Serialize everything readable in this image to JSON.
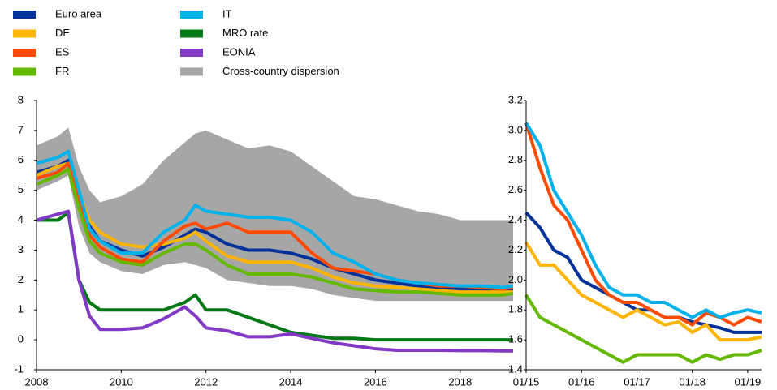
{
  "chart_data": [
    {
      "type": "line",
      "x": [
        2008,
        2008.5,
        2008.75,
        2009,
        2009.25,
        2009.5,
        2010,
        2010.5,
        2011,
        2011.5,
        2011.75,
        2012,
        2012.5,
        2013,
        2013.5,
        2014,
        2014.5,
        2015,
        2015.5,
        2016,
        2016.5,
        2017,
        2017.5,
        2018,
        2018.5,
        2019,
        2019.25
      ],
      "band": {
        "name": "Cross-country dispersion",
        "color": "#a6a6a6",
        "lower": [
          5.0,
          5.3,
          5.5,
          3.8,
          2.9,
          2.6,
          2.3,
          2.2,
          2.5,
          2.6,
          2.5,
          2.4,
          2.0,
          1.9,
          1.8,
          1.8,
          1.7,
          1.5,
          1.4,
          1.3,
          1.3,
          1.3,
          1.3,
          1.3,
          1.3,
          1.3,
          1.3
        ],
        "upper": [
          6.5,
          6.8,
          7.1,
          5.8,
          5.0,
          4.6,
          4.8,
          5.2,
          6.0,
          6.6,
          6.9,
          7.0,
          6.7,
          6.4,
          6.5,
          6.3,
          5.8,
          5.3,
          4.8,
          4.7,
          4.5,
          4.3,
          4.2,
          4.0,
          4.0,
          4.0,
          4.0
        ]
      },
      "series": [
        {
          "name": "Euro area",
          "color": "#003299",
          "values": [
            5.6,
            5.8,
            6.0,
            4.8,
            3.8,
            3.3,
            3.0,
            2.8,
            3.1,
            3.5,
            3.7,
            3.6,
            3.2,
            3.0,
            3.0,
            2.9,
            2.7,
            2.4,
            2.2,
            2.0,
            1.9,
            1.8,
            1.75,
            1.7,
            1.65,
            1.65,
            1.65
          ]
        },
        {
          "name": "DE",
          "color": "#ffb400",
          "values": [
            5.5,
            5.8,
            5.9,
            4.9,
            4.0,
            3.6,
            3.2,
            3.1,
            3.2,
            3.4,
            3.6,
            3.3,
            2.8,
            2.6,
            2.6,
            2.6,
            2.4,
            2.1,
            1.9,
            1.8,
            1.75,
            1.7,
            1.65,
            1.6,
            1.6,
            1.6,
            1.6
          ]
        },
        {
          "name": "ES",
          "color": "#ff4b00",
          "values": [
            5.4,
            5.6,
            5.9,
            4.6,
            3.5,
            3.1,
            2.7,
            2.6,
            3.3,
            3.8,
            3.9,
            3.7,
            3.9,
            3.6,
            3.6,
            3.6,
            2.9,
            2.4,
            2.3,
            2.2,
            2.0,
            1.9,
            1.8,
            1.8,
            1.75,
            1.7,
            1.75
          ]
        },
        {
          "name": "FR",
          "color": "#65b800",
          "values": [
            5.2,
            5.5,
            5.7,
            4.4,
            3.3,
            2.9,
            2.6,
            2.5,
            2.9,
            3.2,
            3.2,
            3.0,
            2.5,
            2.2,
            2.2,
            2.2,
            2.1,
            1.9,
            1.7,
            1.65,
            1.6,
            1.6,
            1.55,
            1.5,
            1.5,
            1.5,
            1.55
          ]
        },
        {
          "name": "IT",
          "color": "#00b1ea",
          "values": [
            5.9,
            6.1,
            6.3,
            5.0,
            3.7,
            3.3,
            2.9,
            2.9,
            3.6,
            4.0,
            4.5,
            4.3,
            4.2,
            4.1,
            4.1,
            4.0,
            3.6,
            2.9,
            2.6,
            2.2,
            2.0,
            1.9,
            1.85,
            1.8,
            1.8,
            1.75,
            1.8
          ]
        },
        {
          "name": "MRO rate",
          "color": "#007816",
          "values": [
            4.0,
            4.0,
            4.25,
            2.0,
            1.25,
            1.0,
            1.0,
            1.0,
            1.0,
            1.25,
            1.5,
            1.0,
            1.0,
            0.75,
            0.5,
            0.25,
            0.15,
            0.05,
            0.05,
            0,
            0,
            0,
            0,
            0,
            0,
            0,
            0
          ]
        },
        {
          "name": "EONIA",
          "color": "#8139c6",
          "values": [
            4.0,
            4.2,
            4.3,
            2.0,
            0.8,
            0.35,
            0.35,
            0.4,
            0.7,
            1.1,
            0.8,
            0.4,
            0.3,
            0.1,
            0.1,
            0.2,
            0.05,
            -0.1,
            -0.2,
            -0.3,
            -0.35,
            -0.35,
            -0.35,
            -0.36,
            -0.36,
            -0.37,
            -0.37
          ]
        }
      ],
      "xlim": [
        2008,
        2019.25
      ],
      "xticks": [
        2008,
        2010,
        2012,
        2014,
        2016,
        2018
      ],
      "ylim": [
        -1,
        8
      ],
      "yticks": [
        -1,
        0,
        1,
        2,
        3,
        4,
        5,
        6,
        7,
        8
      ]
    },
    {
      "type": "line",
      "x": [
        2015,
        2015.25,
        2015.5,
        2015.75,
        2016,
        2016.25,
        2016.5,
        2016.75,
        2017,
        2017.25,
        2017.5,
        2017.75,
        2018,
        2018.25,
        2018.5,
        2018.75,
        2019,
        2019.25
      ],
      "series": [
        {
          "color": "#003299",
          "values": [
            2.45,
            2.35,
            2.2,
            2.15,
            2.0,
            1.95,
            1.9,
            1.85,
            1.8,
            1.8,
            1.75,
            1.75,
            1.72,
            1.7,
            1.68,
            1.65,
            1.65,
            1.65
          ]
        },
        {
          "color": "#ffb400",
          "values": [
            2.25,
            2.1,
            2.1,
            2.0,
            1.9,
            1.85,
            1.8,
            1.75,
            1.8,
            1.75,
            1.7,
            1.72,
            1.65,
            1.7,
            1.6,
            1.6,
            1.6,
            1.62
          ]
        },
        {
          "color": "#ff4b00",
          "values": [
            3.05,
            2.75,
            2.5,
            2.4,
            2.2,
            2.0,
            1.9,
            1.85,
            1.85,
            1.8,
            1.75,
            1.75,
            1.7,
            1.78,
            1.75,
            1.7,
            1.75,
            1.72
          ]
        },
        {
          "color": "#65b800",
          "values": [
            1.9,
            1.75,
            1.7,
            1.65,
            1.6,
            1.55,
            1.5,
            1.45,
            1.5,
            1.5,
            1.5,
            1.5,
            1.45,
            1.5,
            1.47,
            1.5,
            1.5,
            1.53
          ]
        },
        {
          "color": "#00b1ea",
          "values": [
            3.05,
            2.9,
            2.6,
            2.45,
            2.3,
            2.1,
            1.95,
            1.9,
            1.9,
            1.85,
            1.85,
            1.8,
            1.75,
            1.8,
            1.75,
            1.78,
            1.8,
            1.78
          ]
        }
      ],
      "xlim": [
        2015,
        2019.25
      ],
      "xticks": [
        {
          "value": 2015,
          "label": "01/15"
        },
        {
          "value": 2016,
          "label": "01/16"
        },
        {
          "value": 2017,
          "label": "01/17"
        },
        {
          "value": 2018,
          "label": "01/18"
        },
        {
          "value": 2019,
          "label": "01/19"
        }
      ],
      "ylim": [
        1.4,
        3.2
      ],
      "yticks": [
        1.4,
        1.6,
        1.8,
        {
          "value": 2,
          "label": "2.0"
        },
        2.2,
        2.4,
        2.6,
        2.8,
        {
          "value": 3,
          "label": "3.0"
        },
        3.2
      ]
    }
  ]
}
